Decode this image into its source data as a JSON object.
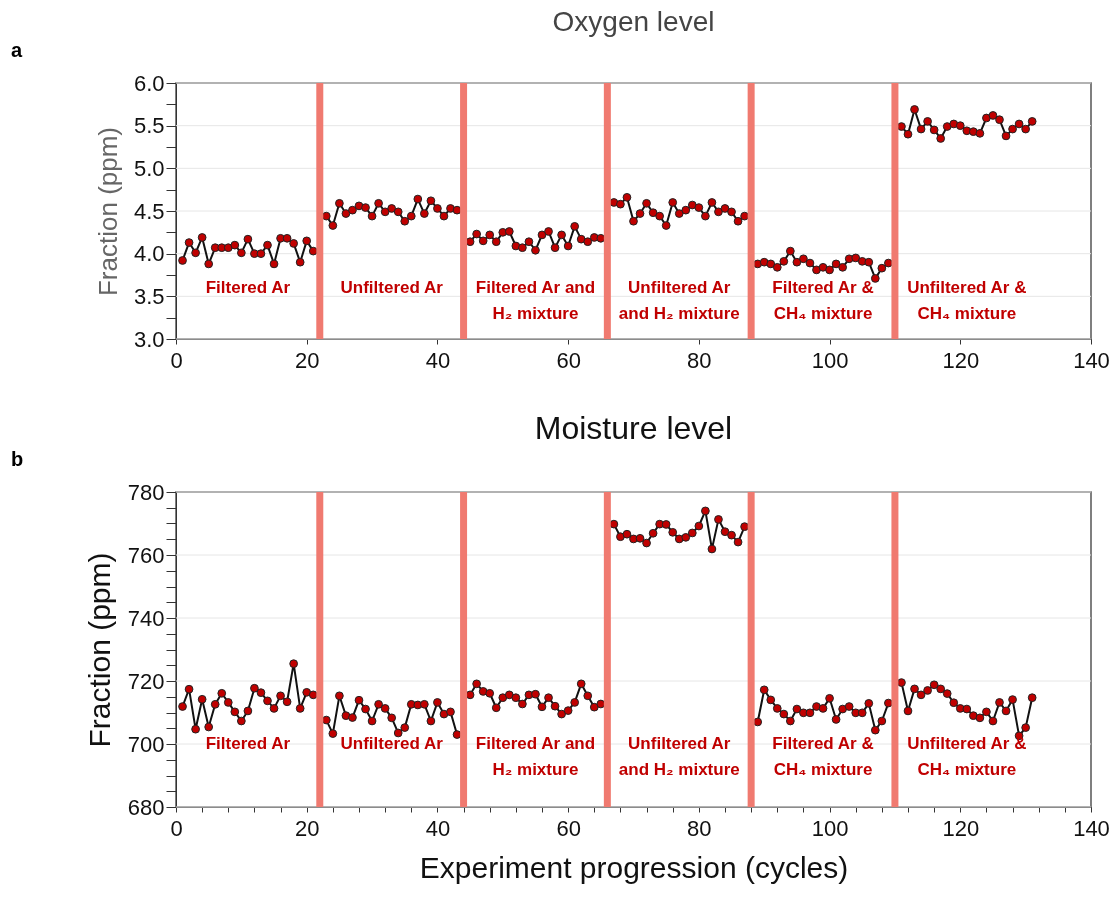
{
  "chart_data": [
    {
      "type": "line",
      "title": "Oxygen level",
      "ylabel": "Fraction (ppm)",
      "marker": "circle",
      "grid": "y",
      "x": [
        1,
        2,
        3,
        4,
        5,
        6,
        7,
        8,
        9,
        10,
        11,
        12,
        13,
        14,
        15,
        16,
        17,
        18,
        19,
        20,
        21,
        22,
        23,
        24,
        25,
        26,
        27,
        28,
        29,
        30,
        31,
        32,
        33,
        34,
        35,
        36,
        37,
        38,
        39,
        40,
        41,
        42,
        43,
        44,
        45,
        46,
        47,
        48,
        49,
        50,
        51,
        52,
        53,
        54,
        55,
        56,
        57,
        58,
        59,
        60,
        61,
        62,
        63,
        64,
        65,
        66,
        67,
        68,
        69,
        70,
        71,
        72,
        73,
        74,
        75,
        76,
        77,
        78,
        79,
        80,
        81,
        82,
        83,
        84,
        85,
        86,
        87,
        88,
        89,
        90,
        91,
        92,
        93,
        94,
        95,
        96,
        97,
        98,
        99,
        100,
        101,
        102,
        103,
        104,
        105,
        106,
        107,
        108,
        109,
        110,
        111,
        112,
        113,
        114,
        115,
        116,
        117,
        118,
        119,
        120,
        121,
        122,
        123,
        124,
        125,
        126,
        127,
        128,
        129,
        130,
        131
      ],
      "series": [
        {
          "color": "#c00000",
          "values": [
            3.92,
            4.13,
            4.01,
            4.19,
            3.88,
            4.07,
            4.07,
            4.07,
            4.1,
            4.01,
            4.17,
            4.0,
            4.0,
            4.1,
            3.88,
            4.18,
            4.18,
            4.12,
            3.9,
            4.15,
            4.03,
            null,
            4.44,
            4.33,
            4.59,
            4.47,
            4.51,
            4.56,
            4.54,
            4.44,
            4.59,
            4.49,
            4.53,
            4.49,
            4.38,
            4.44,
            4.64,
            4.47,
            4.62,
            4.53,
            4.44,
            4.53,
            4.51,
            null,
            4.14,
            4.23,
            4.15,
            4.22,
            4.14,
            4.25,
            4.26,
            4.09,
            4.07,
            4.14,
            4.04,
            4.22,
            4.26,
            4.07,
            4.22,
            4.09,
            4.32,
            4.17,
            4.14,
            4.19,
            4.18,
            null,
            4.6,
            4.58,
            4.66,
            4.38,
            4.47,
            4.59,
            4.48,
            4.44,
            4.33,
            4.6,
            4.47,
            4.51,
            4.57,
            4.54,
            4.44,
            4.6,
            4.49,
            4.53,
            4.49,
            4.38,
            4.44,
            null,
            3.88,
            3.9,
            3.88,
            3.84,
            3.91,
            4.03,
            3.9,
            3.94,
            3.89,
            3.81,
            3.84,
            3.81,
            3.88,
            3.84,
            3.94,
            3.95,
            3.91,
            3.9,
            3.71,
            3.83,
            3.89,
            null,
            5.49,
            5.4,
            5.69,
            5.46,
            5.55,
            5.45,
            5.35,
            5.49,
            5.52,
            5.5,
            5.44,
            5.43,
            5.41,
            5.59,
            5.62,
            5.57,
            5.38,
            5.46,
            5.52,
            5.46,
            5.55
          ]
        }
      ],
      "xlim": [
        0,
        140
      ],
      "xticks": [
        0,
        20,
        40,
        60,
        80,
        100,
        120,
        140
      ],
      "ylim": [
        3,
        6
      ],
      "yticks": [
        {
          "value": 3,
          "label": "3.0"
        },
        {
          "value": 3.25,
          "label": null
        },
        3.5,
        {
          "value": 3.75,
          "label": null
        },
        {
          "value": 4,
          "label": "4.0"
        },
        {
          "value": 4.25,
          "label": null
        },
        4.5,
        {
          "value": 4.75,
          "label": null
        },
        {
          "value": 5,
          "label": "5.0"
        },
        {
          "value": 5.25,
          "label": null
        },
        5.5,
        {
          "value": 5.75,
          "label": null
        },
        {
          "value": 6,
          "label": "6.0"
        }
      ],
      "ref_lines": [
        {
          "axis": "x",
          "value": 22,
          "color": "#f07a70"
        },
        {
          "axis": "x",
          "value": 44,
          "color": "#f07a70"
        },
        {
          "axis": "x",
          "value": 66,
          "color": "#f07a70"
        },
        {
          "axis": "x",
          "value": 88,
          "color": "#f07a70"
        },
        {
          "axis": "x",
          "value": 110,
          "color": "#f07a70"
        }
      ],
      "annotations": [
        "a",
        "Filtered Ar",
        "Unfiltered Ar",
        "Filtered Ar and\nH₂ mixture",
        "Unfiltered Ar\nand H₂ mixture",
        "Filtered Ar &\nCH₄ mixture",
        "Unfiltered Ar &\nCH₄ mixture"
      ]
    },
    {
      "type": "line",
      "title": "Moisture level",
      "xlabel": "Experiment progression (cycles)",
      "ylabel": "Fraction (ppm)",
      "marker": "circle",
      "grid": "y",
      "x": [
        1,
        2,
        3,
        4,
        5,
        6,
        7,
        8,
        9,
        10,
        11,
        12,
        13,
        14,
        15,
        16,
        17,
        18,
        19,
        20,
        21,
        22,
        23,
        24,
        25,
        26,
        27,
        28,
        29,
        30,
        31,
        32,
        33,
        34,
        35,
        36,
        37,
        38,
        39,
        40,
        41,
        42,
        43,
        44,
        45,
        46,
        47,
        48,
        49,
        50,
        51,
        52,
        53,
        54,
        55,
        56,
        57,
        58,
        59,
        60,
        61,
        62,
        63,
        64,
        65,
        66,
        67,
        68,
        69,
        70,
        71,
        72,
        73,
        74,
        75,
        76,
        77,
        78,
        79,
        80,
        81,
        82,
        83,
        84,
        85,
        86,
        87,
        88,
        89,
        90,
        91,
        92,
        93,
        94,
        95,
        96,
        97,
        98,
        99,
        100,
        101,
        102,
        103,
        104,
        105,
        106,
        107,
        108,
        109,
        110,
        111,
        112,
        113,
        114,
        115,
        116,
        117,
        118,
        119,
        120,
        121,
        122,
        123,
        124,
        125,
        126,
        127,
        128,
        129,
        130,
        131
      ],
      "series": [
        {
          "color": "#c00000",
          "values": [
            711.9,
            717.4,
            704.7,
            714.2,
            705.4,
            712.6,
            716.1,
            713.2,
            710.2,
            707.3,
            710.5,
            717.7,
            716.3,
            713.7,
            711.3,
            715.3,
            713.4,
            725.5,
            711.3,
            716.4,
            715.6,
            null,
            707.6,
            703.3,
            715.3,
            709.0,
            708.4,
            713.9,
            711.1,
            707.3,
            712.6,
            711.3,
            708.3,
            703.5,
            705.2,
            712.6,
            712.4,
            712.6,
            707.3,
            713.2,
            709.5,
            710.2,
            703.0,
            null,
            715.6,
            719.1,
            716.7,
            716.1,
            711.5,
            714.7,
            715.6,
            714.7,
            712.7,
            715.6,
            715.8,
            711.8,
            714.7,
            712.0,
            709.5,
            710.6,
            713.2,
            719.1,
            715.3,
            711.7,
            712.7,
            null,
            769.8,
            765.8,
            766.6,
            765.1,
            765.3,
            763.8,
            766.9,
            769.8,
            769.7,
            767.2,
            765.1,
            765.6,
            767.0,
            769.2,
            774.0,
            761.9,
            771.3,
            767.4,
            766.3,
            764.1,
            769.0,
            null,
            707.0,
            717.2,
            714.0,
            711.3,
            709.5,
            707.3,
            711.1,
            709.9,
            709.9,
            711.9,
            711.3,
            714.5,
            707.8,
            711.1,
            711.9,
            709.9,
            709.9,
            712.9,
            704.4,
            707.3,
            713.0,
            null,
            719.5,
            710.5,
            717.5,
            715.6,
            717.0,
            718.8,
            717.5,
            716.0,
            713.1,
            711.3,
            711.1,
            709.0,
            708.3,
            710.2,
            707.3,
            713.2,
            710.5,
            714.1,
            702.6,
            705.2,
            714.7
          ]
        }
      ],
      "xlim": [
        0,
        140
      ],
      "xticks": [
        0,
        {
          "value": 4,
          "label": null
        },
        {
          "value": 8,
          "label": null
        },
        {
          "value": 12,
          "label": null
        },
        {
          "value": 16,
          "label": null
        },
        20,
        {
          "value": 24,
          "label": null
        },
        {
          "value": 28,
          "label": null
        },
        {
          "value": 32,
          "label": null
        },
        {
          "value": 36,
          "label": null
        },
        40,
        {
          "value": 44,
          "label": null
        },
        {
          "value": 48,
          "label": null
        },
        {
          "value": 52,
          "label": null
        },
        {
          "value": 56,
          "label": null
        },
        60,
        {
          "value": 64,
          "label": null
        },
        {
          "value": 68,
          "label": null
        },
        {
          "value": 72,
          "label": null
        },
        {
          "value": 76,
          "label": null
        },
        80,
        {
          "value": 84,
          "label": null
        },
        {
          "value": 88,
          "label": null
        },
        {
          "value": 92,
          "label": null
        },
        {
          "value": 96,
          "label": null
        },
        100,
        {
          "value": 104,
          "label": null
        },
        {
          "value": 108,
          "label": null
        },
        {
          "value": 112,
          "label": null
        },
        {
          "value": 116,
          "label": null
        },
        120,
        {
          "value": 124,
          "label": null
        },
        {
          "value": 128,
          "label": null
        },
        {
          "value": 132,
          "label": null
        },
        {
          "value": 136,
          "label": null
        },
        140
      ],
      "ylim": [
        680,
        780
      ],
      "yticks": [
        680,
        {
          "value": 685,
          "label": null
        },
        {
          "value": 690,
          "label": null
        },
        {
          "value": 695,
          "label": null
        },
        700,
        {
          "value": 705,
          "label": null
        },
        {
          "value": 710,
          "label": null
        },
        {
          "value": 715,
          "label": null
        },
        720,
        {
          "value": 725,
          "label": null
        },
        {
          "value": 730,
          "label": null
        },
        {
          "value": 735,
          "label": null
        },
        740,
        {
          "value": 745,
          "label": null
        },
        {
          "value": 750,
          "label": null
        },
        {
          "value": 755,
          "label": null
        },
        760,
        {
          "value": 765,
          "label": null
        },
        {
          "value": 770,
          "label": null
        },
        {
          "value": 775,
          "label": null
        },
        780
      ],
      "ref_lines": [
        {
          "axis": "x",
          "value": 22,
          "color": "#f07a70"
        },
        {
          "axis": "x",
          "value": 44,
          "color": "#f07a70"
        },
        {
          "axis": "x",
          "value": 66,
          "color": "#f07a70"
        },
        {
          "axis": "x",
          "value": 88,
          "color": "#f07a70"
        },
        {
          "axis": "x",
          "value": 110,
          "color": "#f07a70"
        }
      ],
      "annotations": [
        "b",
        "Filtered Ar",
        "Unfiltered Ar",
        "Filtered Ar and\nH₂ mixture",
        "Unfiltered Ar\nand H₂ mixture",
        "Filtered Ar &\nCH₄ mixture",
        "Unfiltered Ar &\nCH₄ mixture"
      ]
    }
  ]
}
